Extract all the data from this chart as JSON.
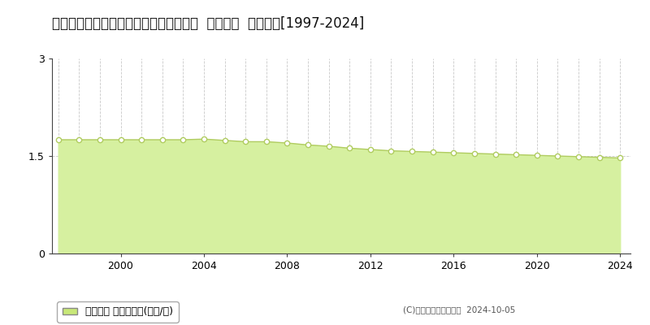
{
  "title": "北海道紋別郡興部町字興部７４１番１５  基準地価  地価推移[1997-2024]",
  "years": [
    1997,
    1998,
    1999,
    2000,
    2001,
    2002,
    2003,
    2004,
    2005,
    2006,
    2007,
    2008,
    2009,
    2010,
    2011,
    2012,
    2013,
    2014,
    2015,
    2016,
    2017,
    2018,
    2019,
    2020,
    2021,
    2022,
    2023,
    2024
  ],
  "values": [
    1.75,
    1.75,
    1.75,
    1.75,
    1.75,
    1.75,
    1.75,
    1.76,
    1.74,
    1.72,
    1.72,
    1.7,
    1.67,
    1.65,
    1.62,
    1.6,
    1.58,
    1.57,
    1.56,
    1.55,
    1.54,
    1.53,
    1.52,
    1.51,
    1.5,
    1.49,
    1.48,
    1.47
  ],
  "ylim": [
    0,
    3
  ],
  "yticks": [
    0,
    1.5,
    3
  ],
  "ytick_labels": [
    "0",
    "1.5",
    "3"
  ],
  "xticks": [
    2000,
    2004,
    2008,
    2012,
    2016,
    2020,
    2024
  ],
  "xtick_labels": [
    "2000",
    "2004",
    "2008",
    "2012",
    "2016",
    "2020",
    "2024"
  ],
  "fill_color": "#d6f0a0",
  "marker_face_color": "#ffffff",
  "marker_edge_color": "#b0cc60",
  "grid_color": "#bbbbbb",
  "bg_color": "#ffffff",
  "legend_label": "基準地価 平均坪単価(万円/坪)",
  "legend_color": "#c8e878",
  "copyright_text": "(C)土地価格ドットコム  2024-10-05",
  "title_fontsize": 12,
  "axis_fontsize": 9,
  "legend_fontsize": 9
}
